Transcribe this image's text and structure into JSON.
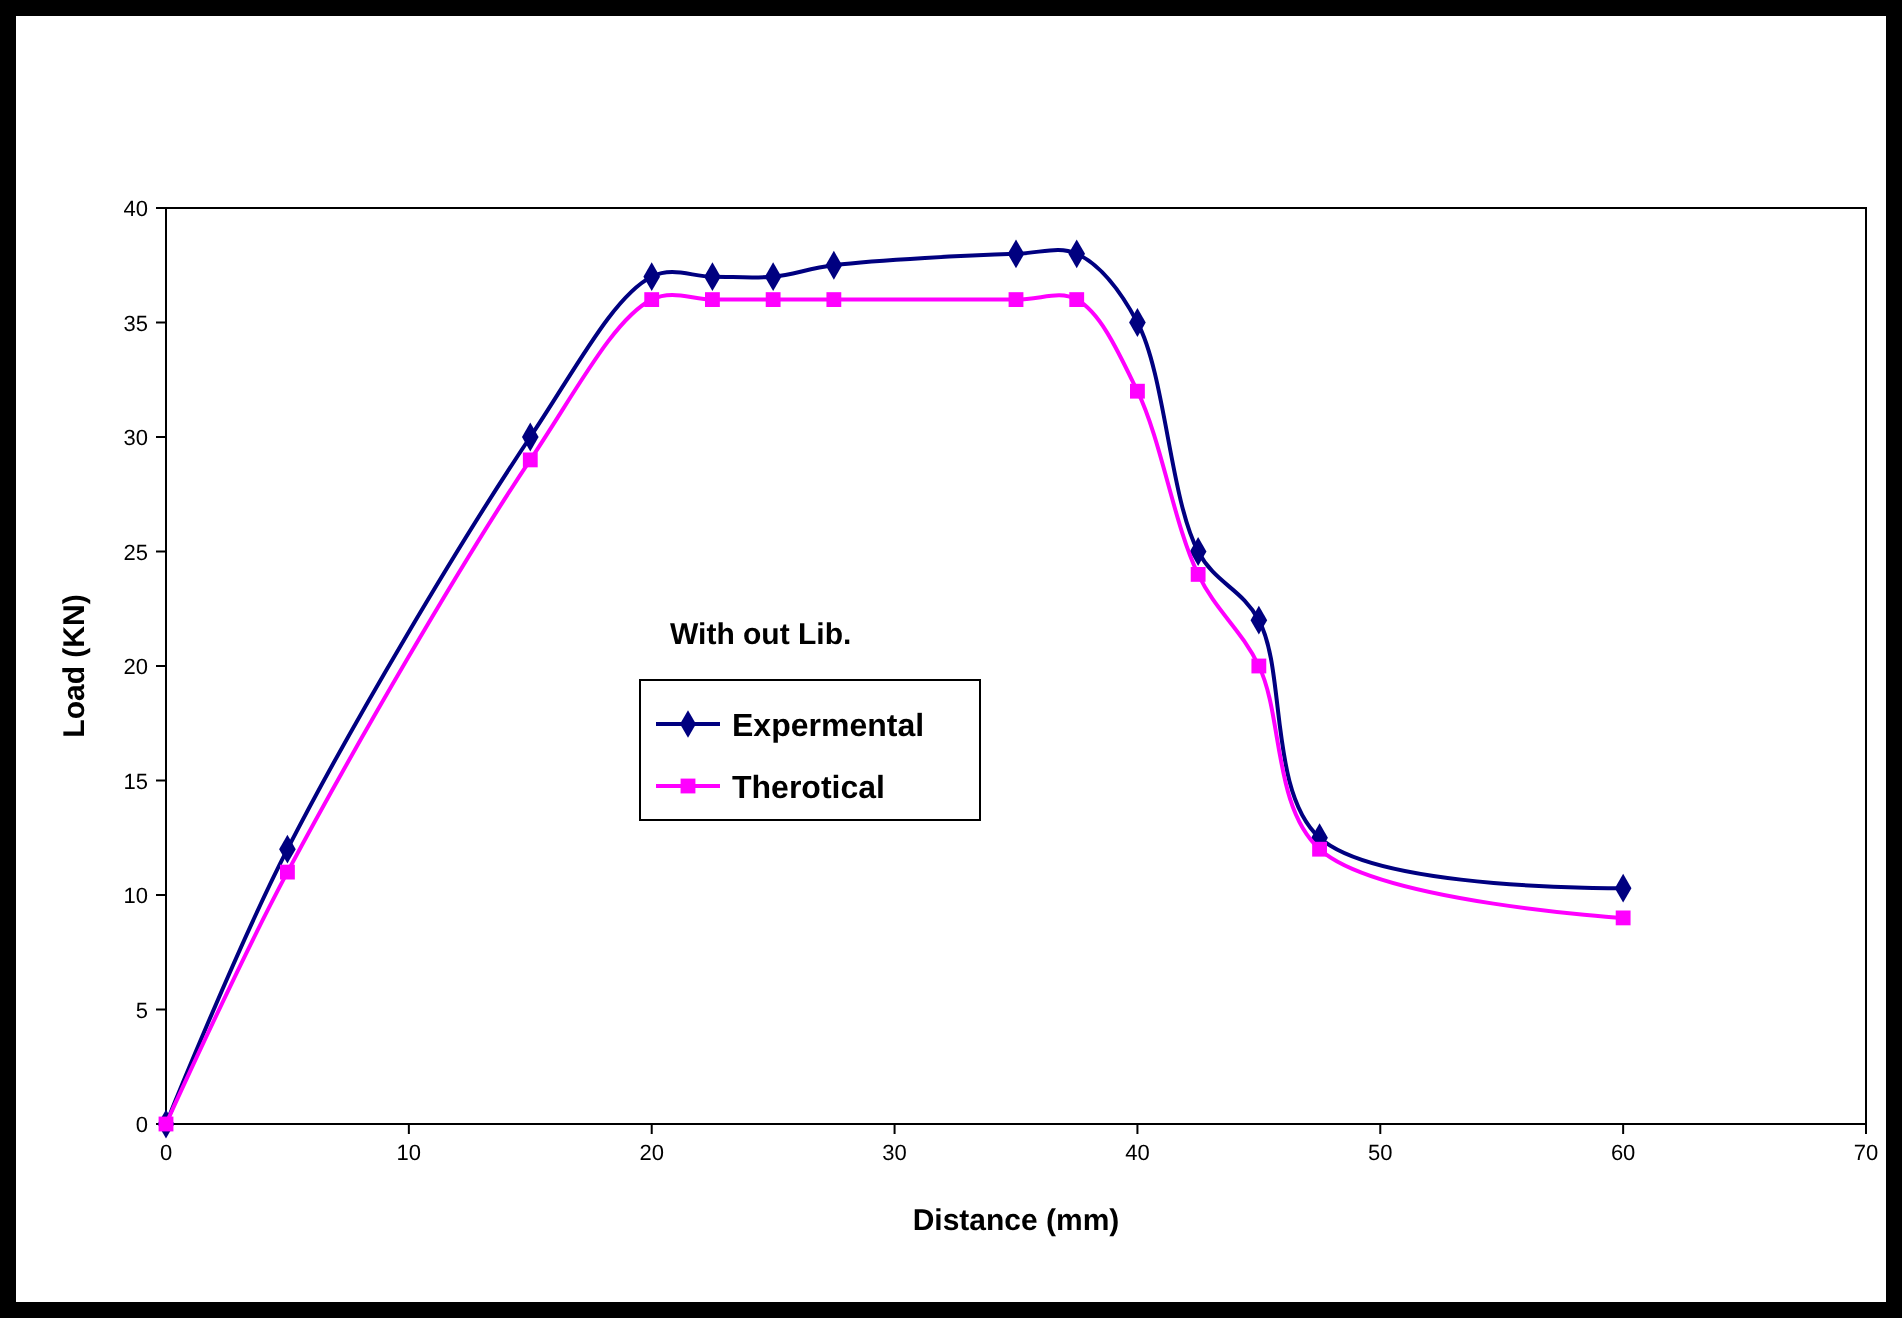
{
  "chart_data": {
    "type": "line",
    "xlabel": "Distance (mm)",
    "ylabel": "Load (KN)",
    "legend_title": "With out Lib.",
    "legend": "center",
    "line_style": "solid",
    "grid": false,
    "xlim": [
      0,
      70
    ],
    "xticks": [
      0,
      10,
      20,
      30,
      40,
      50,
      60,
      70
    ],
    "ylim": [
      0,
      40
    ],
    "yticks": [
      0,
      5,
      10,
      15,
      20,
      25,
      30,
      35,
      40
    ],
    "series": [
      {
        "name": "Expermental",
        "color": "#000080",
        "marker": "diamond",
        "x": [
          0,
          5,
          15,
          20,
          22.5,
          25,
          27.5,
          35,
          37.5,
          40,
          42.5,
          45,
          47.5,
          60
        ],
        "values": [
          0,
          12,
          30,
          37,
          37,
          37,
          37.5,
          38,
          38,
          35,
          25,
          22,
          12.5,
          10.3
        ]
      },
      {
        "name": "Therotical",
        "color": "#ff00ff",
        "marker": "square",
        "x": [
          0,
          5,
          15,
          20,
          22.5,
          25,
          27.5,
          35,
          37.5,
          40,
          42.5,
          45,
          47.5,
          60
        ],
        "values": [
          0,
          11,
          29,
          36,
          36,
          36,
          36,
          36,
          36,
          32,
          24,
          20,
          12,
          9
        ]
      }
    ]
  }
}
